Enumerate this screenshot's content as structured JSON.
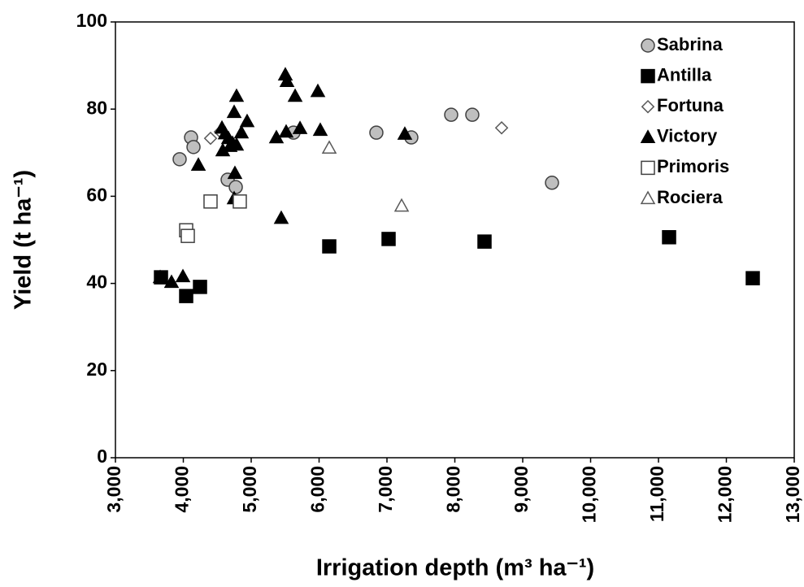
{
  "chart_data": {
    "type": "scatter",
    "xlabel": "Irrigation depth (m³ ha⁻¹)",
    "ylabel": "Yield (t ha⁻¹)",
    "xlim": [
      3000,
      13000
    ],
    "xticks": [
      {
        "value": 3000,
        "label": "3,000"
      },
      {
        "value": 4000,
        "label": "4,000"
      },
      {
        "value": 5000,
        "label": "5,000"
      },
      {
        "value": 6000,
        "label": "6,000"
      },
      {
        "value": 7000,
        "label": "7,000"
      },
      {
        "value": 8000,
        "label": "8,000"
      },
      {
        "value": 9000,
        "label": "9,000"
      },
      {
        "value": 10000,
        "label": "10,000"
      },
      {
        "value": 11000,
        "label": "11,000"
      },
      {
        "value": 12000,
        "label": "12,000"
      },
      {
        "value": 13000,
        "label": "13,000"
      }
    ],
    "ylim": [
      0,
      100
    ],
    "yticks": [
      0,
      20,
      40,
      60,
      80,
      100
    ],
    "grid": false,
    "legend": "upper right",
    "series": [
      {
        "name": "Sabrina",
        "marker": "circle",
        "color": "#bfbfbf",
        "edgecolor": "#404040",
        "x": [
          3946,
          4114,
          4150,
          4653,
          4773,
          5623,
          6844,
          7359,
          7946,
          8257,
          9431
        ],
        "values": [
          68.5,
          73.5,
          71.3,
          63.8,
          62.1,
          74.6,
          74.6,
          73.5,
          78.7,
          78.7,
          63.1
        ]
      },
      {
        "name": "Antilla",
        "marker": "square",
        "color": "#000000",
        "edgecolor": "#000000",
        "x": [
          3671,
          4042,
          4246,
          6150,
          7024,
          8437,
          11156,
          12389
        ],
        "values": [
          41.4,
          37.1,
          39.2,
          48.5,
          50.2,
          49.6,
          50.6,
          41.2
        ]
      },
      {
        "name": "Fortuna",
        "marker": "diamond",
        "color": "#ffffff",
        "edgecolor": "#595959",
        "x": [
          4401,
          4545,
          8689
        ],
        "values": [
          73.3,
          74.8,
          75.7
        ]
      },
      {
        "name": "Victory",
        "marker": "triangle",
        "color": "#000000",
        "edgecolor": "#000000",
        "x": [
          3659,
          3826,
          3994,
          4222,
          4569,
          4617,
          4665,
          4581,
          4689,
          4725,
          4749,
          4784,
          4760,
          4749,
          4856,
          4940,
          4784,
          5371,
          5443,
          5503,
          5527,
          5647,
          5719,
          5515,
          5982,
          6018,
          7263
        ],
        "values": [
          41.4,
          40.3,
          41.6,
          67.2,
          75.7,
          74.4,
          73.3,
          70.5,
          71.5,
          72.2,
          79.3,
          83.0,
          65.3,
          59.5,
          74.6,
          77.2,
          71.8,
          73.5,
          55.0,
          87.9,
          86.4,
          83.0,
          75.6,
          74.8,
          84.1,
          75.2,
          74.3
        ]
      },
      {
        "name": "Primoris",
        "marker": "square",
        "color": "#ffffff",
        "edgecolor": "#404040",
        "x": [
          4042,
          4066,
          4401,
          4832
        ],
        "values": [
          52.2,
          50.9,
          58.8,
          58.8
        ]
      },
      {
        "name": "Rociera",
        "marker": "triangle",
        "color": "#ffffff",
        "edgecolor": "#595959",
        "x": [
          6150,
          7216
        ],
        "values": [
          71.1,
          57.8
        ]
      }
    ]
  }
}
